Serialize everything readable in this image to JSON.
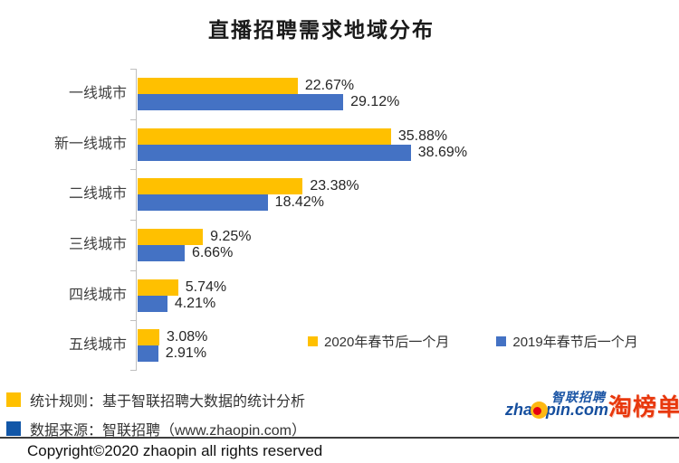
{
  "chart_data": {
    "type": "bar",
    "orientation": "horizontal",
    "title": "直播招聘需求地域分布",
    "categories": [
      "一线城市",
      "新一线城市",
      "二线城市",
      "三线城市",
      "四线城市",
      "五线城市"
    ],
    "series": [
      {
        "name": "2020年春节后一个月",
        "color": "#FFC000",
        "values": [
          22.67,
          35.88,
          23.38,
          9.25,
          5.74,
          3.08
        ]
      },
      {
        "name": "2019年春节后一个月",
        "color": "#4472C4",
        "values": [
          29.12,
          38.69,
          18.42,
          6.66,
          4.21,
          2.91
        ]
      }
    ],
    "value_label_suffix": "%",
    "xlim": [
      0,
      40
    ],
    "grid": false,
    "legend_position": "inside-bottom-right",
    "axis_color": "#BFBFBF"
  },
  "footer": {
    "notes": [
      {
        "marker_color": "#FFC000",
        "text": "统计规则：基于智联招聘大数据的统计分析"
      },
      {
        "marker_color": "#1257A8",
        "text": "数据来源：智联招聘（www.zhaopin.com）"
      }
    ],
    "copyright": "Copyright©2020 zhaopin all rights reserved"
  },
  "logo": {
    "zhaopin_text_pre": "zha",
    "zhaopin_text_post": "pin.com",
    "zhaopin_cn": "智联招聘",
    "taobangdan": "淘榜单",
    "brand_blue": "#1B55A5",
    "brand_yellow": "#FDB813",
    "brand_red": "#E8380D"
  }
}
